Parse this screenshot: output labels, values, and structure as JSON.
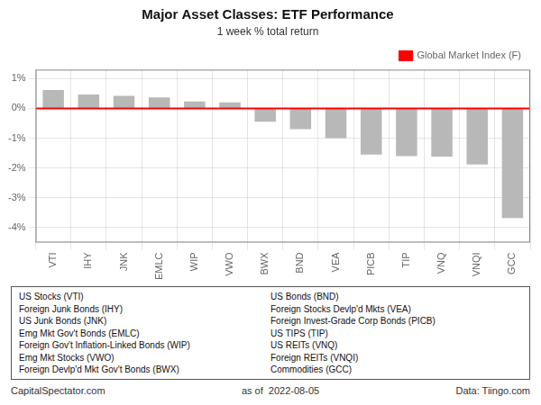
{
  "chart_data": {
    "type": "bar",
    "title": "Major Asset Classes: ETF Performance",
    "subtitle": "1 week % total return",
    "categories": [
      "VTI",
      "IHY",
      "JNK",
      "EMLC",
      "WIP",
      "VWO",
      "BWX",
      "BND",
      "VEA",
      "PICB",
      "TIP",
      "VNQ",
      "VNQI",
      "GCC"
    ],
    "values": [
      0.62,
      0.47,
      0.42,
      0.37,
      0.23,
      0.2,
      -0.45,
      -0.7,
      -1.0,
      -1.55,
      -1.6,
      -1.62,
      -1.88,
      -3.68
    ],
    "color": "#b8b8b8",
    "ylim": [
      -4.5,
      1.3
    ],
    "yticks": [
      {
        "value": -4.0,
        "label": "-4%"
      },
      {
        "value": -3.0,
        "label": "-3%"
      },
      {
        "value": -2.0,
        "label": "-2%"
      },
      {
        "value": -1.0,
        "label": "-1%"
      },
      {
        "value": 0.0,
        "label": "0%"
      },
      {
        "value": 1.0,
        "label": "1%"
      }
    ],
    "grid": true,
    "legend": "upper right",
    "annotations": [
      {
        "type": "hline",
        "y": 0,
        "text": "Global Market Index (F)",
        "color": "#ff0000"
      }
    ],
    "legend_box": [
      [
        "US Stocks (VTI)",
        "Foreign Junk Bonds (IHY)",
        "US Junk Bonds (JNK)",
        "Emg Mkt Gov't Bonds (EMLC)",
        "Foreign Gov't Inflation-Linked Bonds (WIP)",
        "Emg Mkt Stocks (VWO)",
        "Foreign Devlp'd Mkt Gov't Bonds (BWX)"
      ],
      [
        "US Bonds (BND)",
        "Foreign Stocks Devlp'd Mkts (VEA)",
        "Foreign Invest-Grade Corp Bonds (PICB)",
        "US TIPS (TIP)",
        "US REITs (VNQ)",
        "Foreign REITs (VNQI)",
        "Commodities (GCC)"
      ]
    ],
    "footer": [
      "CapitalSpectator.com",
      "as of  2022-08-05",
      "Data: Tiingo.com"
    ]
  }
}
